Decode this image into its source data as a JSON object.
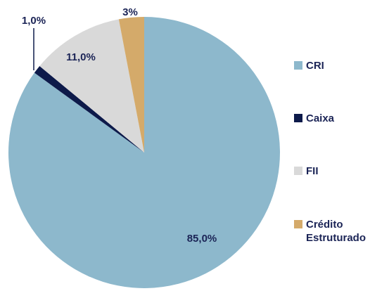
{
  "chart_data": {
    "type": "pie",
    "categories": [
      "CRI",
      "Caixa",
      "FII",
      "Crédito Estruturado"
    ],
    "values": [
      85,
      1,
      11,
      3
    ],
    "value_labels": [
      "85,0%",
      "1,0%",
      "11,0%",
      "3%"
    ],
    "colors": [
      "#8db8cc",
      "#0d1a4a",
      "#d9d9d9",
      "#d4aa6a"
    ],
    "legend": "right"
  }
}
